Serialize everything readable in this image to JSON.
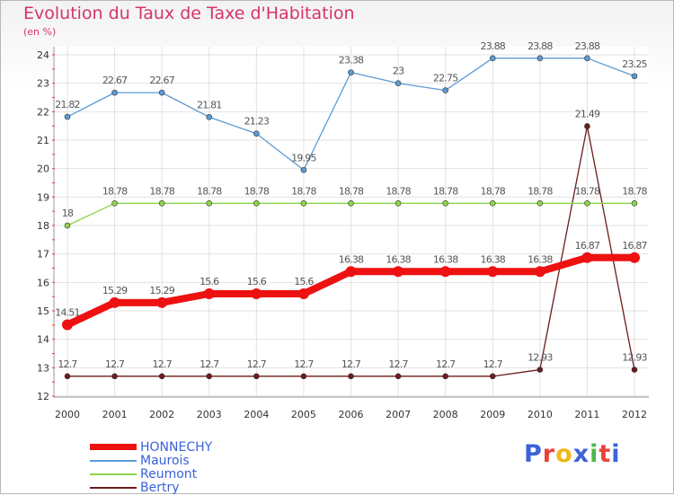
{
  "chart_data": {
    "type": "line",
    "title": "Evolution du Taux de Taxe d'Habitation",
    "subtitle": "(en %)",
    "x": [
      "2000",
      "2001",
      "2002",
      "2003",
      "2004",
      "2005",
      "2006",
      "2007",
      "2008",
      "2009",
      "2010",
      "2011",
      "2012"
    ],
    "ylim": [
      12,
      24
    ],
    "yticks": [
      12,
      13,
      14,
      15,
      16,
      17,
      18,
      19,
      20,
      21,
      22,
      23,
      24
    ],
    "grid": true,
    "legend_position": "bottom-left",
    "series": [
      {
        "name": "Bertry",
        "color": "#6b1c1c",
        "values": [
          12.7,
          12.7,
          12.7,
          12.7,
          12.7,
          12.7,
          12.7,
          12.7,
          12.7,
          12.7,
          12.93,
          21.49,
          12.93
        ],
        "labels": [
          "12.7",
          "12.7",
          "12.7",
          "12.7",
          "12.7",
          "12.7",
          "12.7",
          "12.7",
          "12.7",
          "12.7",
          "12.93",
          "21.49",
          "12.93"
        ]
      },
      {
        "name": "Reumont",
        "color": "#8ed44a",
        "values": [
          18,
          18.78,
          18.78,
          18.78,
          18.78,
          18.78,
          18.78,
          18.78,
          18.78,
          18.78,
          18.78,
          18.78,
          18.78
        ],
        "labels": [
          "18",
          "18.78",
          "18.78",
          "18.78",
          "18.78",
          "18.78",
          "18.78",
          "18.78",
          "18.78",
          "18.78",
          "18.78",
          "18.78",
          "18.78"
        ]
      },
      {
        "name": "Maurois",
        "color": "#5b9bd5",
        "values": [
          21.82,
          22.67,
          22.67,
          21.81,
          21.23,
          19.95,
          23.38,
          23,
          22.75,
          23.88,
          23.88,
          23.88,
          23.25
        ],
        "labels": [
          "21.82",
          "22.67",
          "22.67",
          "21.81",
          "21.23",
          "19.95",
          "23.38",
          "23",
          "22.75",
          "23.88",
          "23.88",
          "23.88",
          "23.25"
        ]
      },
      {
        "name": "HONNECHY",
        "color": "#ee1111",
        "values": [
          14.51,
          15.29,
          15.29,
          15.6,
          15.6,
          15.6,
          16.38,
          16.38,
          16.38,
          16.38,
          16.38,
          16.87,
          16.87
        ],
        "labels": [
          "14.51",
          "15.29",
          "15.29",
          "15.6",
          "15.6",
          "15.6",
          "16.38",
          "16.38",
          "16.38",
          "16.38",
          "16.38",
          "16.87",
          "16.87"
        ]
      }
    ]
  },
  "legend": [
    {
      "name": "HONNECHY",
      "color": "#ee1111"
    },
    {
      "name": "Maurois",
      "color": "#5b9bd5"
    },
    {
      "name": "Reumont",
      "color": "#8ed44a"
    },
    {
      "name": "Bertry",
      "color": "#6b1c1c"
    }
  ],
  "logo": {
    "text": "Proxiti",
    "colors": [
      "#3b62d9",
      "#e8433a",
      "#f0b81e",
      "#3b62d9",
      "#4db84d",
      "#e8433a",
      "#3b62d9"
    ]
  }
}
